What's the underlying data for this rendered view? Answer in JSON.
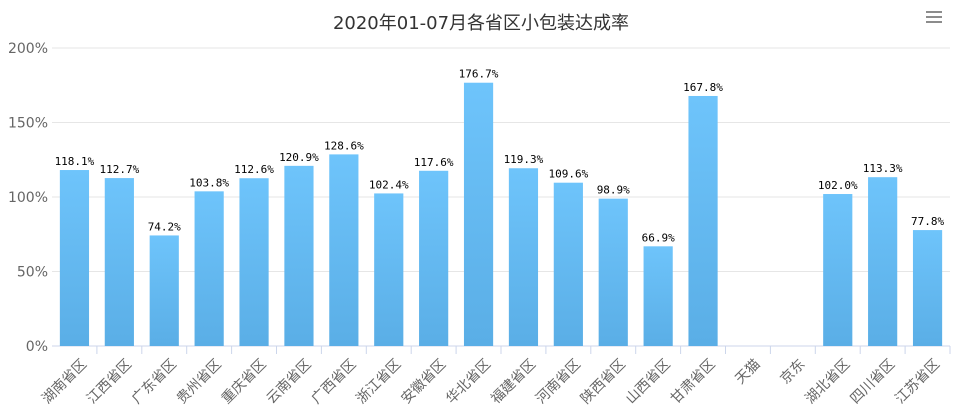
{
  "chart_data": {
    "type": "bar",
    "title": "2020年01-07月各省区小包装达成率",
    "categories": [
      "湖南省区",
      "江西省区",
      "广东省区",
      "贵州省区",
      "重庆省区",
      "云南省区",
      "广西省区",
      "浙江省区",
      "安徽省区",
      "华北省区",
      "福建省区",
      "河南省区",
      "陕西省区",
      "山西省区",
      "甘肃省区",
      "天猫",
      "京东",
      "湖北省区",
      "四川省区",
      "江苏省区"
    ],
    "values": [
      118.1,
      112.7,
      74.2,
      103.8,
      112.6,
      120.9,
      128.6,
      102.4,
      117.6,
      176.7,
      119.3,
      109.6,
      98.9,
      66.9,
      167.8,
      null,
      null,
      102.0,
      113.3,
      77.8
    ],
    "data_labels": [
      "118.1%",
      "112.7%",
      "74.2%",
      "103.8%",
      "112.6%",
      "120.9%",
      "128.6%",
      "102.4%",
      "117.6%",
      "176.7%",
      "119.3%",
      "109.6%",
      "98.9%",
      "66.9%",
      "167.8%",
      "",
      "",
      "102.0%",
      "113.3%",
      "77.8%"
    ],
    "y_ticks": [
      "0%",
      "50%",
      "100%",
      "150%",
      "200%"
    ],
    "ylim": [
      0,
      200
    ],
    "grid": true,
    "bar_color_top": "#6ec4fb",
    "bar_color_bottom": "#5aaee6",
    "axis_color": "#ccd6eb",
    "grid_color": "#e6e6e6"
  }
}
